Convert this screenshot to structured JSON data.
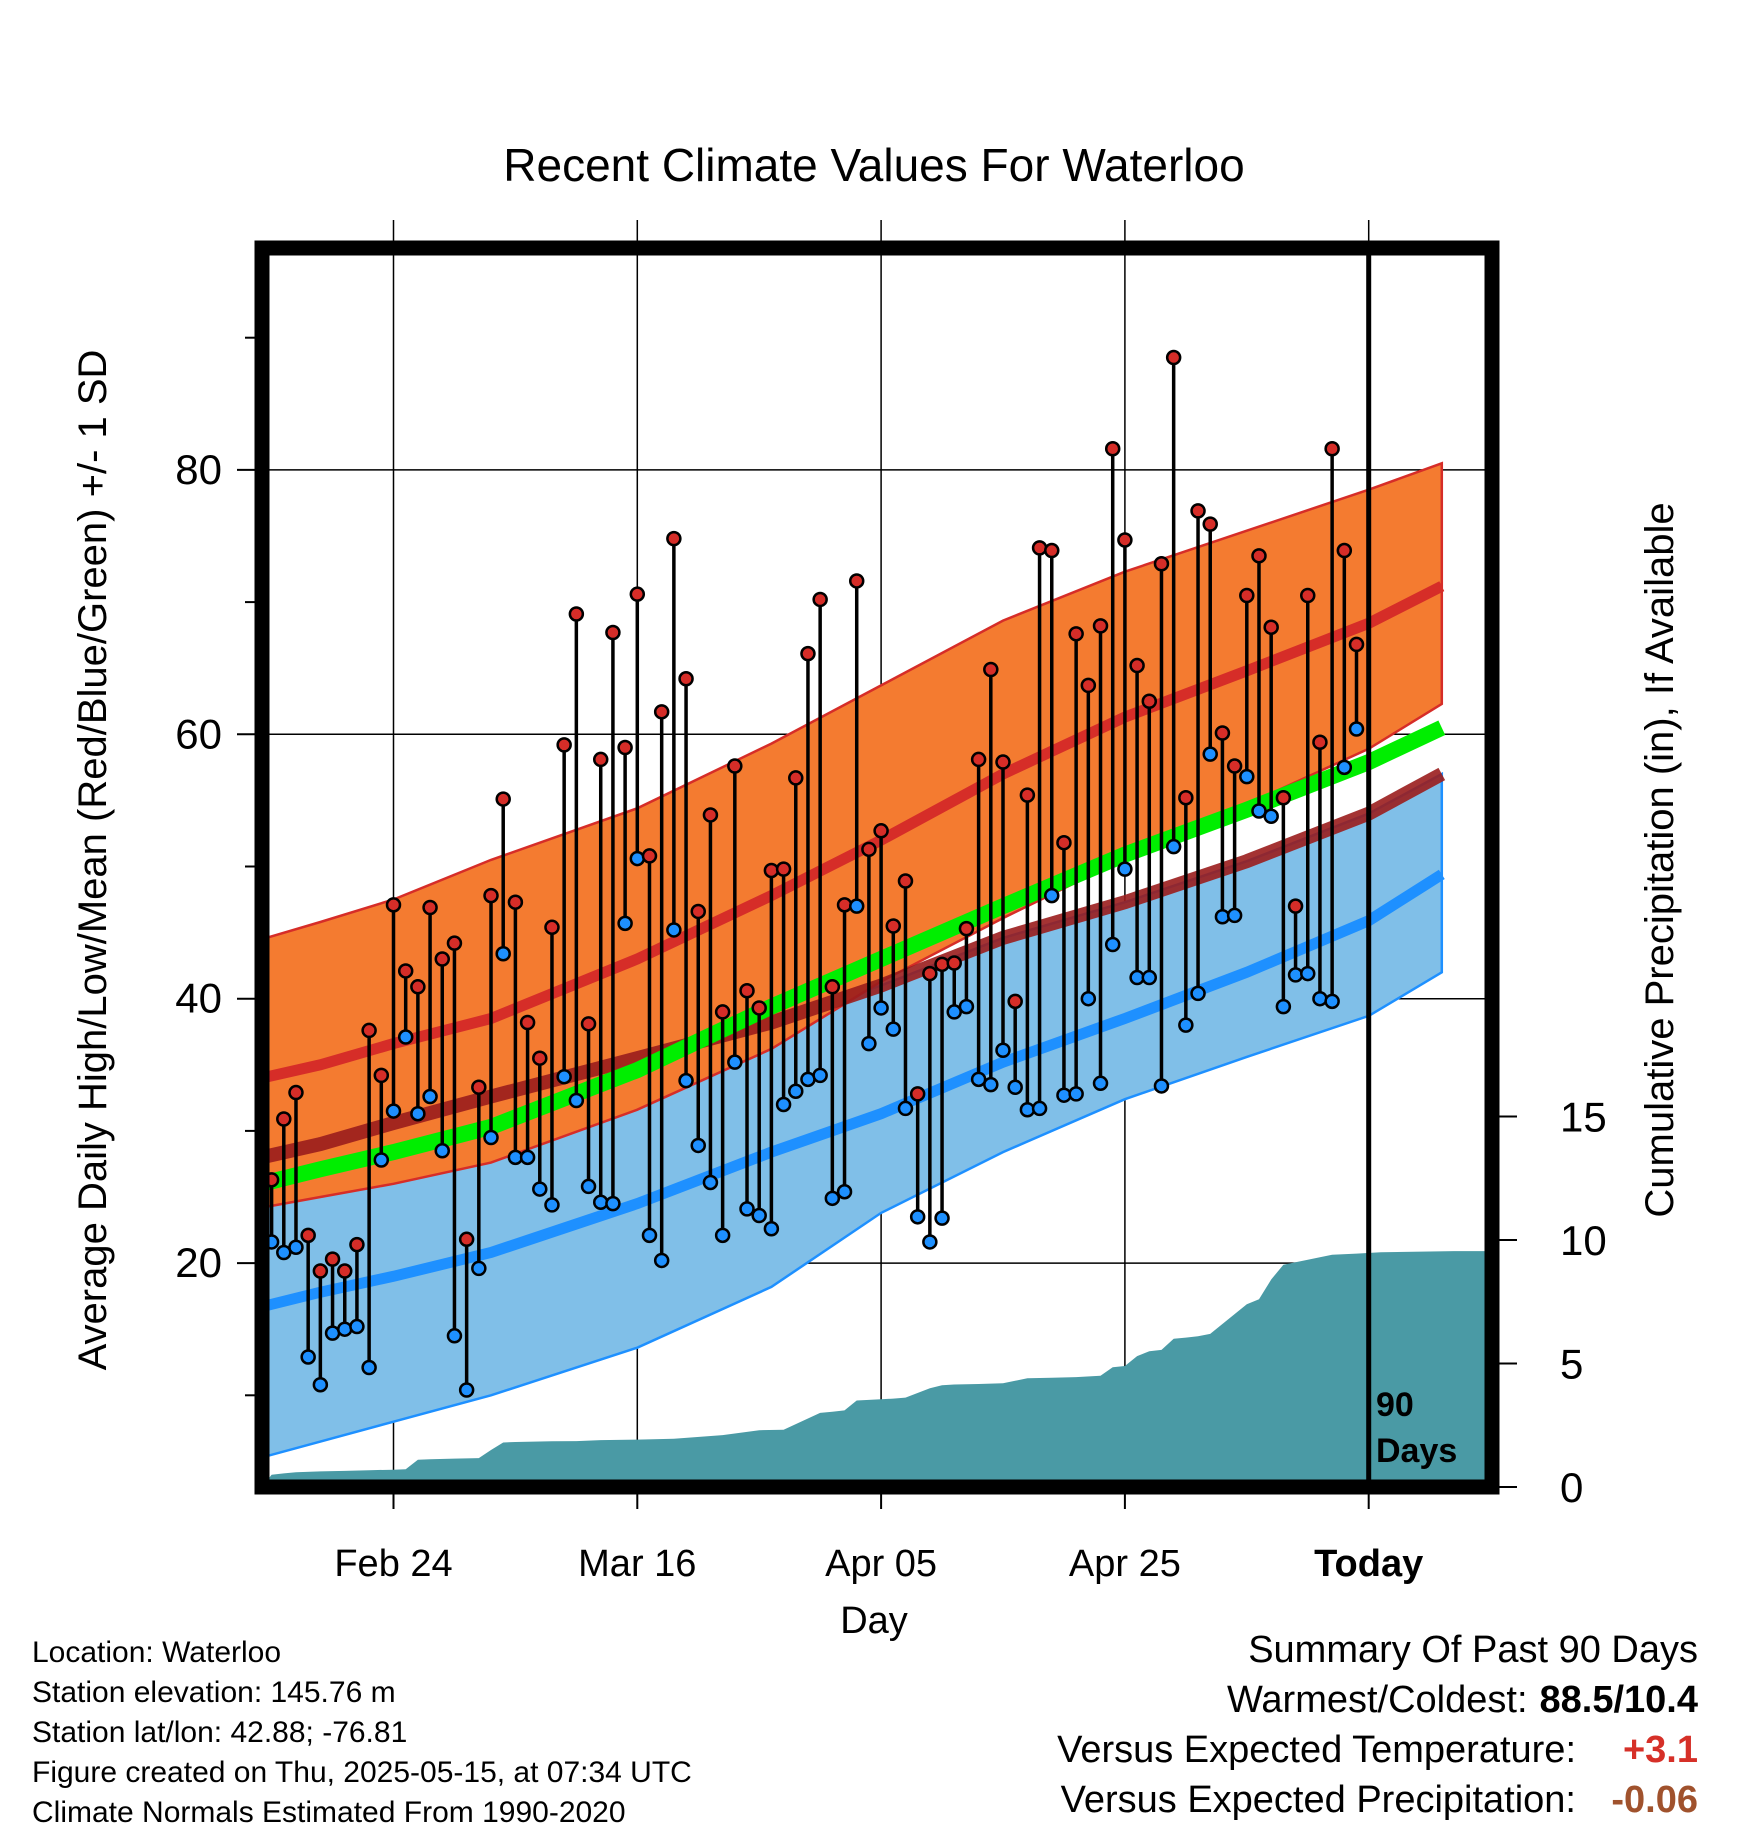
{
  "title": "Recent Climate Values For Waterloo",
  "xlabel": "Day",
  "ylabel_left": "Average Daily High/Low/Mean (Red/Blue/Green) +/- 1 SD",
  "ylabel_right": "Cumulative Precipitation (in), If Available",
  "days_label": "90 Days",
  "info": {
    "location": "Location: Waterloo",
    "elevation": "Station elevation: 145.76 m",
    "latlon": "Station lat/lon: 42.88; -76.81",
    "created": "Figure created on Thu, 2025-05-15, at 07:34 UTC",
    "normals": "Climate Normals Estimated From 1990-2020"
  },
  "summary": {
    "heading": "Summary Of Past 90 Days",
    "warm_cold_label": "Warmest/Coldest:",
    "warm_cold_value": "88.5/10.4",
    "temp_label": "Versus Expected Temperature:",
    "temp_value": "+3.1",
    "precip_label": "Versus Expected Precipitation:",
    "precip_value": "-0.06"
  },
  "colors": {
    "high_band": "#f47b30",
    "high_line": "#d62d28",
    "low_band": "#80bfe8",
    "low_line": "#1e90ff",
    "mean_band": "#00ee00",
    "precip_fill": "#4a9aa5",
    "dot_high": "#d62d28",
    "dot_low": "#1e90ff"
  },
  "chart_data": {
    "type": "line",
    "x_range_days": [
      -13,
      88
    ],
    "x_ticks": [
      {
        "day": 0,
        "label": "Feb 24"
      },
      {
        "day": 20,
        "label": "Mar 16"
      },
      {
        "day": 40,
        "label": "Apr 05"
      },
      {
        "day": 60,
        "label": "Apr 25"
      },
      {
        "day": 80,
        "label": "Today"
      }
    ],
    "y_left": {
      "range": [
        0,
        93
      ],
      "ticks": [
        20,
        40,
        60,
        80
      ]
    },
    "y_right": {
      "range": [
        0,
        18.4
      ],
      "ticks": [
        0,
        5,
        10,
        15
      ]
    },
    "daily": {
      "start_day": -10,
      "highs": [
        26.3,
        30.9,
        32.9,
        22.1,
        19.4,
        20.3,
        19.4,
        21.4,
        37.6,
        34.2,
        47.1,
        42.1,
        40.9,
        46.9,
        43.0,
        44.2,
        21.8,
        33.3,
        47.8,
        55.1,
        47.3,
        38.2,
        35.5,
        45.4,
        59.2,
        69.1,
        38.1,
        58.1,
        67.7,
        59.0,
        70.6,
        50.8,
        61.7,
        74.8,
        64.2,
        46.6,
        53.9,
        39.0,
        57.6,
        40.6,
        39.3,
        49.7,
        49.8,
        56.7,
        66.1,
        70.2,
        40.9,
        47.1,
        71.6,
        51.3,
        52.7,
        45.5,
        48.9,
        32.8,
        41.9,
        42.6,
        42.7,
        45.3,
        58.1,
        64.9,
        57.9,
        39.8,
        55.4,
        74.1,
        73.9,
        51.8,
        67.6,
        63.7,
        68.2,
        81.6,
        74.7,
        65.2,
        62.5,
        72.9,
        88.5,
        55.2,
        76.9,
        75.9,
        60.1,
        57.6,
        70.5,
        73.5,
        68.1,
        55.2,
        47.0,
        70.5,
        59.4,
        81.6,
        73.9,
        66.8
      ],
      "lows": [
        21.6,
        20.8,
        21.2,
        12.9,
        10.8,
        14.7,
        15.0,
        15.2,
        12.1,
        27.8,
        31.5,
        37.1,
        31.3,
        32.6,
        28.5,
        14.5,
        10.4,
        19.6,
        29.5,
        43.4,
        28.0,
        28.0,
        25.6,
        24.4,
        34.1,
        32.3,
        25.8,
        24.6,
        24.5,
        45.7,
        50.6,
        22.1,
        20.2,
        45.2,
        33.8,
        28.9,
        26.1,
        22.1,
        35.2,
        24.1,
        23.6,
        22.6,
        32.0,
        33.0,
        33.9,
        34.2,
        24.9,
        25.4,
        47.0,
        36.6,
        39.3,
        37.7,
        31.7,
        23.5,
        21.6,
        23.4,
        39.0,
        39.4,
        33.9,
        33.5,
        36.1,
        33.3,
        31.6,
        31.7,
        47.8,
        32.7,
        32.8,
        40.0,
        33.6,
        44.1,
        49.8,
        41.6,
        41.6,
        33.4,
        51.5,
        38.0,
        40.4,
        58.5,
        46.2,
        46.3,
        56.8,
        54.2,
        53.8,
        39.4,
        41.8,
        41.9,
        40.0,
        39.8,
        57.5,
        60.4
      ]
    },
    "normals": {
      "days": [
        -11,
        -6,
        0,
        8,
        20,
        31,
        40,
        50,
        60,
        70,
        80,
        86
      ],
      "high_mean": [
        34,
        35,
        36.6,
        38.5,
        43.0,
        47.8,
        52.0,
        57.0,
        61.3,
        64.8,
        68.4,
        71.2
      ],
      "high_upper": [
        44.5,
        45.8,
        47.5,
        50.5,
        54.4,
        59.3,
        63.7,
        68.6,
        72.3,
        75.4,
        78.5,
        80.5
      ],
      "high_lower": [
        24.2,
        25.0,
        26.0,
        27.6,
        31.6,
        36.2,
        41.3,
        46.1,
        50.6,
        54.7,
        58.9,
        62.3
      ],
      "mean_mean": [
        26.0,
        27.1,
        28.4,
        30.3,
        34.6,
        39.4,
        43.0,
        47.0,
        50.9,
        54.3,
        57.9,
        60.5
      ],
      "low_mean": [
        16.7,
        17.8,
        19.0,
        20.8,
        24.5,
        28.4,
        31.3,
        35.2,
        38.5,
        42.0,
        45.9,
        49.4
      ],
      "low_upper": [
        28.0,
        29.0,
        30.6,
        32.6,
        35.5,
        38.2,
        41.0,
        44.6,
        47.3,
        50.4,
        54.0,
        57.0
      ],
      "low_lower": [
        5.3,
        6.5,
        8.0,
        10.0,
        13.6,
        18.2,
        23.8,
        28.4,
        32.4,
        35.6,
        38.7,
        42.0
      ]
    },
    "precip_cumulative": {
      "days": [
        -11,
        -10,
        -9,
        -8,
        -6,
        -4,
        -2,
        0,
        1,
        2,
        3,
        5,
        7,
        8,
        9,
        10,
        13,
        15,
        17,
        20,
        23,
        27,
        30,
        32,
        35,
        36,
        37,
        38,
        40,
        41,
        42,
        44,
        45,
        46,
        48,
        50,
        52,
        54,
        56,
        58,
        59,
        60,
        61,
        62,
        63,
        64,
        65,
        66,
        67,
        68,
        69,
        70,
        71,
        72,
        73,
        74,
        75,
        76,
        77,
        79,
        81,
        83,
        87
      ],
      "values": [
        0,
        0.5,
        0.55,
        0.6,
        0.63,
        0.65,
        0.68,
        0.7,
        0.72,
        1.1,
        1.12,
        1.15,
        1.17,
        1.5,
        1.8,
        1.82,
        1.85,
        1.86,
        1.9,
        1.92,
        1.95,
        2.1,
        2.3,
        2.32,
        3.0,
        3.05,
        3.1,
        3.5,
        3.55,
        3.58,
        3.62,
        4.0,
        4.12,
        4.15,
        4.17,
        4.2,
        4.4,
        4.42,
        4.45,
        4.5,
        4.85,
        4.9,
        5.3,
        5.5,
        5.55,
        6.0,
        6.05,
        6.1,
        6.2,
        6.6,
        7.0,
        7.4,
        7.6,
        8.4,
        9.0,
        9.1,
        9.2,
        9.3,
        9.4,
        9.45,
        9.5,
        9.52,
        9.55
      ]
    }
  }
}
